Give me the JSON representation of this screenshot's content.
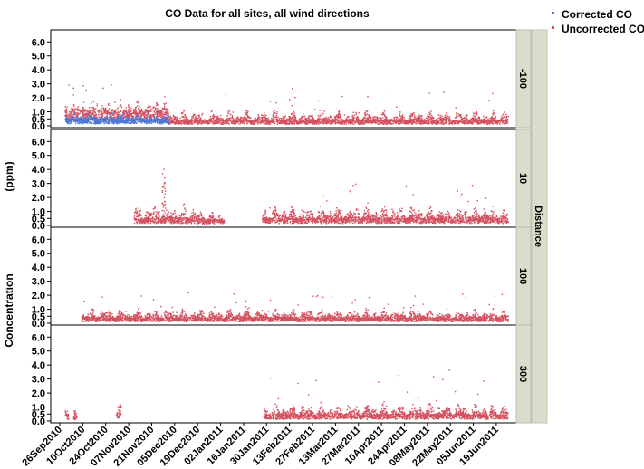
{
  "chart_data": {
    "type": "scatter",
    "title": "CO Data for all sites, all wind directions",
    "ylabel_parts": [
      "Concentration",
      "(ppm)"
    ],
    "facet_label": "Distance",
    "legend": [
      {
        "name": "Corrected CO",
        "color": "#4a78d8"
      },
      {
        "name": "Uncorrected CO",
        "color": "#d4505f"
      }
    ],
    "colors": {
      "corrected": "#4a78d8",
      "uncorrected": "#d4505f",
      "strip": "#dcdccc"
    },
    "ylim": [
      0.0,
      6.6
    ],
    "yticks": [
      "0.0",
      "0.5",
      "1.0",
      "2.0",
      "3.0",
      "4.0",
      "5.0",
      "6.0"
    ],
    "x_start_date": "2010-09-26",
    "x_end_date": "2011-06-29",
    "x_tick_labels": [
      "26Sep2010",
      "10Oct2010",
      "24Oct2010",
      "07Nov2010",
      "21Nov2010",
      "05Dec2010",
      "19Dec2010",
      "02Jan2011",
      "16Jan2011",
      "30Jan2011",
      "13Feb2011",
      "27Feb2011",
      "13Mar2011",
      "27Mar2011",
      "10Apr2011",
      "24Apr2011",
      "08May2011",
      "22May2011",
      "05Jun2011",
      "19Jun2011"
    ],
    "panels": [
      {
        "label": "-100",
        "uncorrected_segments": [
          {
            "start": "2010-09-29",
            "end": "2010-12-01",
            "base": 1.0,
            "spread": 0.9,
            "spike": 3.0
          },
          {
            "start": "2010-12-01",
            "end": "2011-06-26",
            "base": 0.35,
            "spread": 0.9,
            "spike": 2.7
          }
        ],
        "corrected_segments": [
          {
            "start": "2010-09-29",
            "end": "2010-12-01",
            "base": 0.45,
            "spread": 0.45,
            "spike": 1.0
          }
        ]
      },
      {
        "label": "10",
        "uncorrected_segments": [
          {
            "start": "2010-11-10",
            "end": "2010-12-18",
            "base": 0.45,
            "spread": 1.2,
            "spike": 2.3
          },
          {
            "start": "2010-11-27",
            "end": "2010-11-29",
            "base": 3.0,
            "spread": 3.0,
            "spike": 6.0
          },
          {
            "start": "2010-12-18",
            "end": "2011-01-04",
            "base": 0.35,
            "spread": 0.7,
            "spike": 1.0
          },
          {
            "start": "2011-01-27",
            "end": "2011-06-26",
            "base": 0.45,
            "spread": 1.1,
            "spike": 3.0
          }
        ],
        "corrected_segments": []
      },
      {
        "label": "100",
        "uncorrected_segments": [
          {
            "start": "2010-10-09",
            "end": "2011-06-26",
            "base": 0.35,
            "spread": 0.8,
            "spike": 2.2
          }
        ],
        "corrected_segments": []
      },
      {
        "label": "300",
        "uncorrected_segments": [
          {
            "start": "2010-09-29",
            "end": "2010-10-01",
            "base": 0.4,
            "spread": 0.8,
            "spike": 1.2
          },
          {
            "start": "2010-10-04",
            "end": "2010-10-06",
            "base": 0.3,
            "spread": 0.5,
            "spike": 4.0
          },
          {
            "start": "2010-10-30",
            "end": "2010-11-02",
            "base": 0.5,
            "spread": 0.9,
            "spike": 1.3
          },
          {
            "start": "2011-01-28",
            "end": "2011-06-26",
            "base": 0.4,
            "spread": 1.0,
            "spike": 3.8
          }
        ],
        "corrected_segments": []
      }
    ]
  }
}
